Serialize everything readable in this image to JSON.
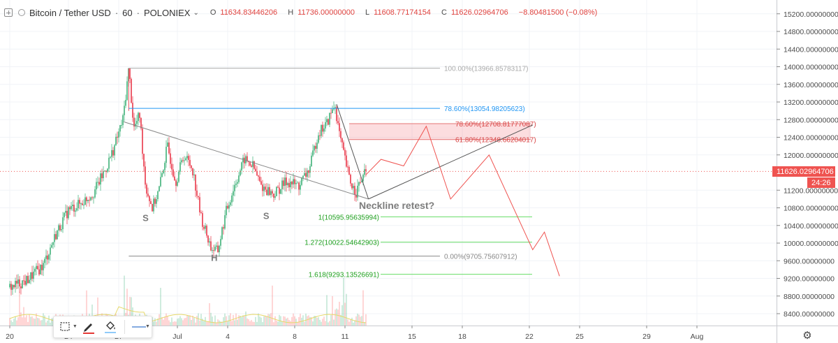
{
  "legend": {
    "symbol": "Bitcoin / Tether USD",
    "sep1": "·",
    "interval": "60",
    "sep2": "·",
    "exchange": "POLONIEX",
    "open_label": "O",
    "open": "11634.83446206",
    "high_label": "H",
    "high": "11736.00000000",
    "low_label": "L",
    "low": "11608.77174154",
    "close_label": "C",
    "close": "11626.02964706",
    "change": "−8.80481500 (−0.08%)"
  },
  "price_axis": {
    "ticks": [
      {
        "value": 15200,
        "label": "15200.00000000"
      },
      {
        "value": 14800,
        "label": "14800.00000000"
      },
      {
        "value": 14400,
        "label": "14400.00000000"
      },
      {
        "value": 14000,
        "label": "14000.00000000"
      },
      {
        "value": 13600,
        "label": "13600.00000000"
      },
      {
        "value": 13200,
        "label": "13200.00000000"
      },
      {
        "value": 12800,
        "label": "12800.00000000"
      },
      {
        "value": 12400,
        "label": "12400.00000000"
      },
      {
        "value": 12000,
        "label": "12000.00000000"
      },
      {
        "value": 11200,
        "label": "11200.00000000"
      },
      {
        "value": 10800,
        "label": "10800.00000000"
      },
      {
        "value": 10400,
        "label": "10400.00000000"
      },
      {
        "value": 10000,
        "label": "10000.00000000"
      },
      {
        "value": 9600,
        "label": "9600.00000000"
      },
      {
        "value": 9200,
        "label": "9200.00000000"
      },
      {
        "value": 8800,
        "label": "8800.00000000"
      },
      {
        "value": 8400,
        "label": "8400.00000000"
      }
    ],
    "last_price": 11626.02964706,
    "last_price_label": "11626.02964706",
    "countdown": "24:26"
  },
  "time_axis": {
    "ticks": [
      {
        "day": 0,
        "label": "20"
      },
      {
        "day": 7,
        "label": "24"
      },
      {
        "day": 13,
        "label": "27"
      },
      {
        "day": 20,
        "label": "Jul"
      },
      {
        "day": 26,
        "label": "4"
      },
      {
        "day": 34,
        "label": "8"
      },
      {
        "day": 40,
        "label": "11"
      },
      {
        "day": 48,
        "label": "15"
      },
      {
        "day": 54,
        "label": "18"
      },
      {
        "day": 62,
        "label": "22"
      },
      {
        "day": 68,
        "label": "25"
      },
      {
        "day": 76,
        "label": "29"
      },
      {
        "day": 82,
        "label": "Aug"
      }
    ]
  },
  "chart_data": {
    "type": "candlestick",
    "x_unit": "days from Jun 20",
    "y_range": [
      8200,
      15400
    ],
    "x_range": [
      0,
      86
    ],
    "price_path": [
      {
        "x": 0.0,
        "y": 9000
      },
      {
        "x": 2.0,
        "y": 9150
      },
      {
        "x": 4.0,
        "y": 9500
      },
      {
        "x": 5.5,
        "y": 10200
      },
      {
        "x": 7.0,
        "y": 10750
      },
      {
        "x": 8.5,
        "y": 10900
      },
      {
        "x": 10.0,
        "y": 11150
      },
      {
        "x": 11.5,
        "y": 11700
      },
      {
        "x": 12.5,
        "y": 12200
      },
      {
        "x": 13.5,
        "y": 12800
      },
      {
        "x": 14.2,
        "y": 13966
      },
      {
        "x": 14.8,
        "y": 12600
      },
      {
        "x": 15.5,
        "y": 12900
      },
      {
        "x": 16.2,
        "y": 11300
      },
      {
        "x": 17.0,
        "y": 10800
      },
      {
        "x": 17.8,
        "y": 11200
      },
      {
        "x": 18.8,
        "y": 12200
      },
      {
        "x": 19.8,
        "y": 11400
      },
      {
        "x": 20.8,
        "y": 12000
      },
      {
        "x": 21.8,
        "y": 11700
      },
      {
        "x": 22.8,
        "y": 10600
      },
      {
        "x": 24.0,
        "y": 9900
      },
      {
        "x": 24.8,
        "y": 9800
      },
      {
        "x": 25.8,
        "y": 10700
      },
      {
        "x": 26.8,
        "y": 11300
      },
      {
        "x": 28.0,
        "y": 11900
      },
      {
        "x": 29.0,
        "y": 11750
      },
      {
        "x": 30.0,
        "y": 11300
      },
      {
        "x": 31.5,
        "y": 11100
      },
      {
        "x": 33.0,
        "y": 11400
      },
      {
        "x": 34.5,
        "y": 11300
      },
      {
        "x": 35.8,
        "y": 11700
      },
      {
        "x": 36.8,
        "y": 12500
      },
      {
        "x": 37.8,
        "y": 12700
      },
      {
        "x": 38.8,
        "y": 13150
      },
      {
        "x": 39.3,
        "y": 12500
      },
      {
        "x": 39.8,
        "y": 12050
      },
      {
        "x": 40.6,
        "y": 11400
      },
      {
        "x": 41.3,
        "y": 11150
      },
      {
        "x": 42.0,
        "y": 11450
      },
      {
        "x": 42.6,
        "y": 11626
      }
    ],
    "volume_hint": "volume histogram at bottom",
    "annotations": {
      "pattern_labels": [
        {
          "text": "S",
          "x": 16.2,
          "y": 10500
        },
        {
          "text": "H",
          "x": 24.4,
          "y": 9600
        },
        {
          "text": "S",
          "x": 30.6,
          "y": 10550
        },
        {
          "text": "Neckline retest?",
          "x": 40.5,
          "y": 10900
        }
      ],
      "fib_upper": [
        {
          "label": "100.00%(13966.85783117)",
          "price": 13966.86,
          "color": "#aaaaaa"
        },
        {
          "label": "78.60%(13054.98205623)",
          "price": 13054.98,
          "color": "#2196f3"
        },
        {
          "label": "0.00%(9705.75607912)",
          "price": 9705.76,
          "color": "#888888"
        }
      ],
      "fib_zone": [
        {
          "label": "78.60%(12708.81777087)",
          "price": 12708.82,
          "color": "#e57373"
        },
        {
          "label": "61.80%(12348.66204017)",
          "price": 12348.66,
          "color": "#e57373"
        }
      ],
      "fib_ext": [
        {
          "label": "1(10595.95635994)",
          "price": 10595.96,
          "color": "#4caf50"
        },
        {
          "label": "1.272(10022.54642903)",
          "price": 10022.55,
          "color": "#4caf50"
        },
        {
          "label": "1.618(9293.13526691)",
          "price": 9293.14,
          "color": "#4caf50"
        }
      ]
    }
  },
  "toolbar": {
    "tools": [
      "selection-tool",
      "pen-tool",
      "fill-tool",
      "line-style-tool"
    ]
  }
}
